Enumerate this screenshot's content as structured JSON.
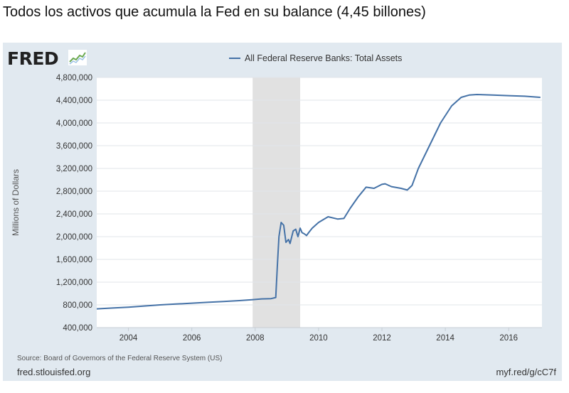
{
  "headline": "Todos los activos que acumula la Fed en su balance (4,45 billones)",
  "logo": {
    "text": "FRED"
  },
  "source": "Source: Board of Governors of the Federal Reserve System (US)",
  "footer": {
    "left": "fred.stlouisfed.org",
    "right": "myf.red/g/cC7f"
  },
  "colors": {
    "panel": "#e1e9f0",
    "line": "#4572a7",
    "recession": "#e1e1e1",
    "grid": "#e1e5ea"
  },
  "chart_data": {
    "type": "line",
    "title": "",
    "xlabel": "",
    "ylabel": "Millions of Dollars",
    "legend_position": "top-center",
    "grid": true,
    "xlim": [
      2003.0,
      2017.05
    ],
    "ylim": [
      400000,
      4800000
    ],
    "x_ticks": [
      2004,
      2006,
      2008,
      2010,
      2012,
      2014,
      2016
    ],
    "x_tick_labels": [
      "2004",
      "2006",
      "2008",
      "2010",
      "2012",
      "2014",
      "2016"
    ],
    "y_ticks": [
      400000,
      800000,
      1200000,
      1600000,
      2000000,
      2400000,
      2800000,
      3200000,
      3600000,
      4000000,
      4400000,
      4800000
    ],
    "y_tick_labels": [
      "400,000",
      "800,000",
      "1,200,000",
      "1,600,000",
      "2,000,000",
      "2,400,000",
      "2,800,000",
      "3,200,000",
      "3,600,000",
      "4,000,000",
      "4,400,000",
      "4,800,000"
    ],
    "recession_shading": [
      [
        2007.92,
        2009.42
      ]
    ],
    "series": [
      {
        "name": "All Federal Reserve Banks: Total Assets",
        "x": [
          2003.0,
          2003.5,
          2004.0,
          2004.5,
          2005.0,
          2005.5,
          2006.0,
          2006.5,
          2007.0,
          2007.5,
          2007.9,
          2008.2,
          2008.5,
          2008.65,
          2008.7,
          2008.75,
          2008.82,
          2008.9,
          2008.97,
          2009.05,
          2009.1,
          2009.2,
          2009.28,
          2009.35,
          2009.42,
          2009.48,
          2009.55,
          2009.62,
          2009.7,
          2009.8,
          2010.0,
          2010.3,
          2010.6,
          2010.8,
          2011.0,
          2011.25,
          2011.5,
          2011.75,
          2012.0,
          2012.1,
          2012.3,
          2012.6,
          2012.8,
          2012.95,
          2013.15,
          2013.5,
          2013.85,
          2014.2,
          2014.5,
          2014.75,
          2015.0,
          2015.5,
          2016.0,
          2016.5,
          2017.0
        ],
        "values": [
          730000,
          745000,
          760000,
          780000,
          800000,
          815000,
          830000,
          845000,
          860000,
          875000,
          890000,
          905000,
          910000,
          930000,
          1500000,
          2000000,
          2250000,
          2200000,
          1900000,
          1950000,
          1880000,
          2100000,
          2130000,
          2000000,
          2150000,
          2070000,
          2050000,
          2020000,
          2080000,
          2150000,
          2250000,
          2350000,
          2310000,
          2320000,
          2500000,
          2700000,
          2870000,
          2850000,
          2920000,
          2930000,
          2880000,
          2850000,
          2820000,
          2900000,
          3200000,
          3600000,
          4000000,
          4300000,
          4450000,
          4490000,
          4500000,
          4490000,
          4480000,
          4470000,
          4450000
        ]
      }
    ]
  }
}
